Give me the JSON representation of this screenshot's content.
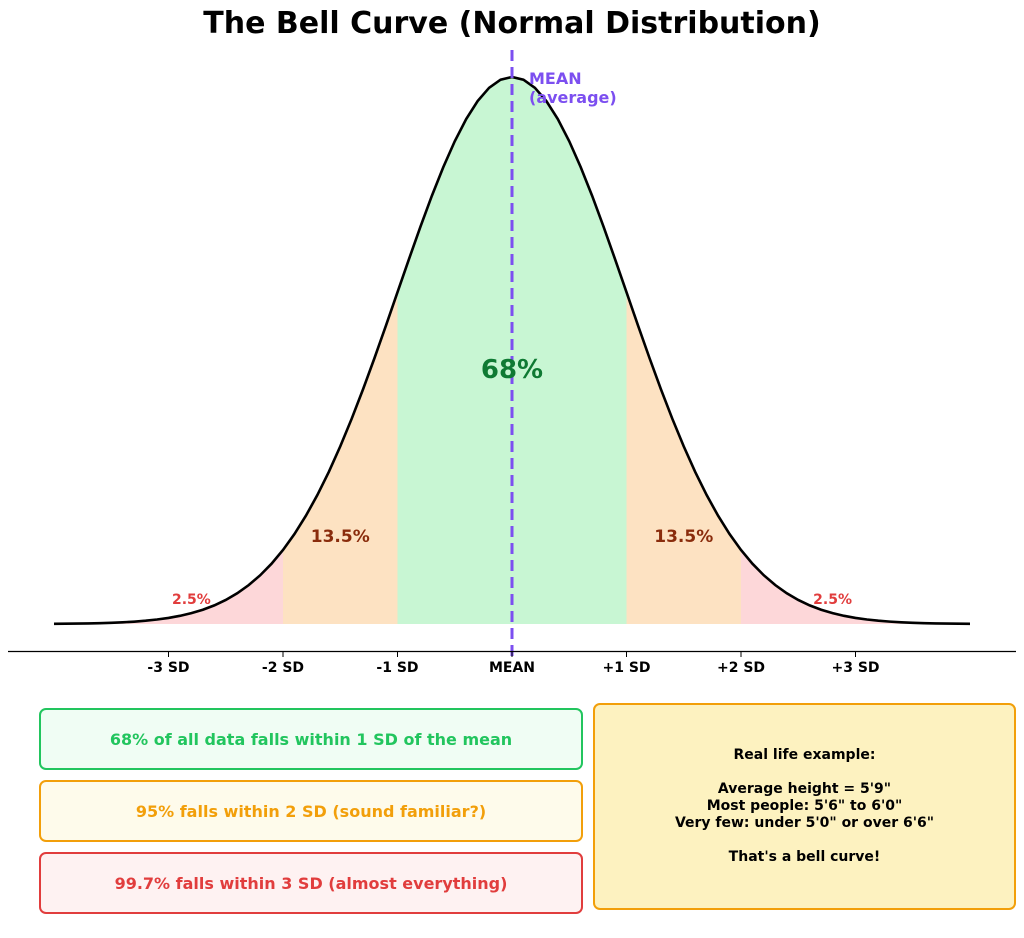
{
  "chart_data": {
    "type": "area",
    "title": "The Bell Curve (Normal Distribution)",
    "distribution": "normal",
    "mean": 0,
    "sd": 1,
    "xlim": [
      -4,
      4
    ],
    "ticks": [
      {
        "x": -3,
        "label": "-3 SD"
      },
      {
        "x": -2,
        "label": "-2 SD"
      },
      {
        "x": -1,
        "label": "-1 SD"
      },
      {
        "x": 0,
        "label": "MEAN"
      },
      {
        "x": 1,
        "label": "+1 SD"
      },
      {
        "x": 2,
        "label": "+2 SD"
      },
      {
        "x": 3,
        "label": "+3 SD"
      }
    ],
    "regions": [
      {
        "from": -4,
        "to": -2,
        "color": "#fdd7d9"
      },
      {
        "from": -2,
        "to": -1,
        "color": "#fde2c2"
      },
      {
        "from": -1,
        "to": 1,
        "color": "#c8f6d3"
      },
      {
        "from": 1,
        "to": 2,
        "color": "#fde2c2"
      },
      {
        "from": 2,
        "to": 4,
        "color": "#fdd7d9"
      }
    ],
    "region_labels": [
      {
        "text": "68%",
        "x": 0,
        "color": "#0f7a33"
      },
      {
        "text": "13.5%",
        "x": -1.5,
        "color": "#8a2c0c"
      },
      {
        "text": "13.5%",
        "x": 1.5,
        "color": "#8a2c0c"
      },
      {
        "text": "2.5%",
        "x": -2.8,
        "color": "#e13d3d"
      },
      {
        "text": "2.5%",
        "x": 2.8,
        "color": "#e13d3d"
      }
    ],
    "mean_line": {
      "x": 0,
      "label_line1": "MEAN",
      "label_line2": "(average)",
      "color": "#7c4ff0"
    },
    "curve_color": "#000000"
  },
  "notes": [
    {
      "text": "68% of all data falls within 1 SD of the mean"
    },
    {
      "text": "95% falls within 2 SD  (sound familiar?)"
    },
    {
      "text": "99.7% falls within 3 SD  (almost everything)"
    }
  ],
  "example": {
    "heading": "Real life example:",
    "line1": "Average height = 5'9\"",
    "line2": "Most people: 5'6\" to 6'0\"",
    "line3": "Very few: under 5'0\" or over 6'6\"",
    "footer": "That's a bell curve!"
  }
}
